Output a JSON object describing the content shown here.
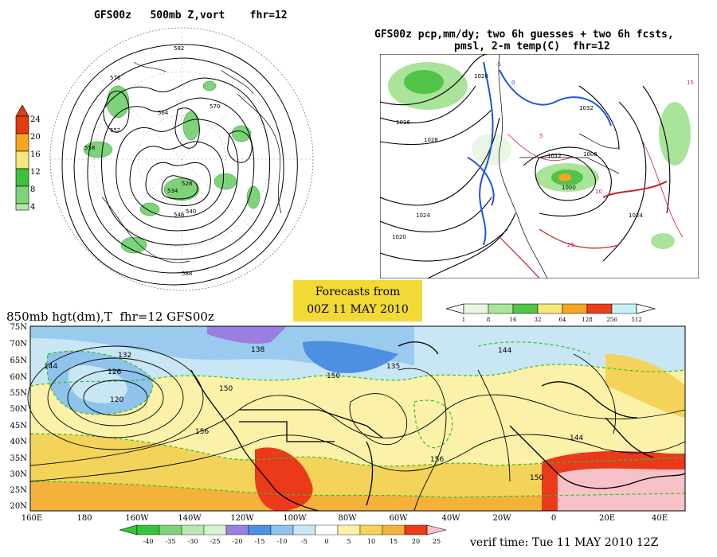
{
  "panel_a": {
    "title": "GFS00z   500mb Z,vort    fhr=12",
    "colorbar": [
      "24",
      "20",
      "16",
      "12",
      "8",
      "4"
    ],
    "colors": [
      "#e03c10",
      "#f6a623",
      "#f4e87a",
      "#3fc13f",
      "#7ed37a",
      "#b7e6b0"
    ],
    "contour_labels": [
      "582",
      "576",
      "570",
      "564",
      "558",
      "552",
      "546",
      "540",
      "534",
      "528",
      "588"
    ]
  },
  "panel_b": {
    "title_line1": "GFS00z pcp,mm/dy; two 6h guesses + two 6h fcsts,",
    "title_line2": "pmsl, 2-m temp(C)  fhr=12",
    "contour_labels": [
      "1020",
      "1016",
      "1028",
      "1024",
      "1008",
      "1000",
      "1012",
      "1032",
      "15",
      "10",
      "5",
      "25",
      "0",
      "-5"
    ],
    "legend_values": [
      "1",
      "8",
      "16",
      "32",
      "64",
      "128",
      "256",
      "512"
    ],
    "legend_colors": [
      "#eaf6e4",
      "#a9e49a",
      "#52c447",
      "#f4e87a",
      "#f6a623",
      "#e8401c",
      "#c8f0f4"
    ]
  },
  "forecast_box": {
    "line1": "Forecasts from",
    "line2": "00Z 11 MAY 2010"
  },
  "panel_c": {
    "title": "850mb hgt(dm),T  fhr=12 GFS00z",
    "y_ticks": [
      "75N",
      "70N",
      "65N",
      "60N",
      "55N",
      "50N",
      "45N",
      "40N",
      "35N",
      "30N",
      "25N",
      "20N"
    ],
    "x_ticks": [
      "160E",
      "180",
      "160W",
      "140W",
      "120W",
      "100W",
      "80W",
      "60W",
      "40W",
      "20W",
      "0",
      "20E",
      "40E"
    ],
    "contour_labels": [
      "132",
      "144",
      "126",
      "120",
      "138",
      "150",
      "156",
      "135",
      "144",
      "150",
      "156",
      "144",
      "150"
    ],
    "legend_values": [
      "-40",
      "-35",
      "-30",
      "-25",
      "-20",
      "-15",
      "-10",
      "-5",
      "0",
      "5",
      "10",
      "15",
      "20",
      "25"
    ],
    "legend_colors": [
      "#38c43a",
      "#7ed37a",
      "#b7e6b0",
      "#9b7fe0",
      "#4d8fe0",
      "#8fc3ec",
      "#c8e6f4",
      "#eaf8f8",
      "#ffffff",
      "#fbf1a8",
      "#f4d35a",
      "#f4b23a",
      "#ea3a1a",
      "#f6c2c8"
    ]
  },
  "verif": "verif time: Tue 11 MAY 2010 12Z"
}
